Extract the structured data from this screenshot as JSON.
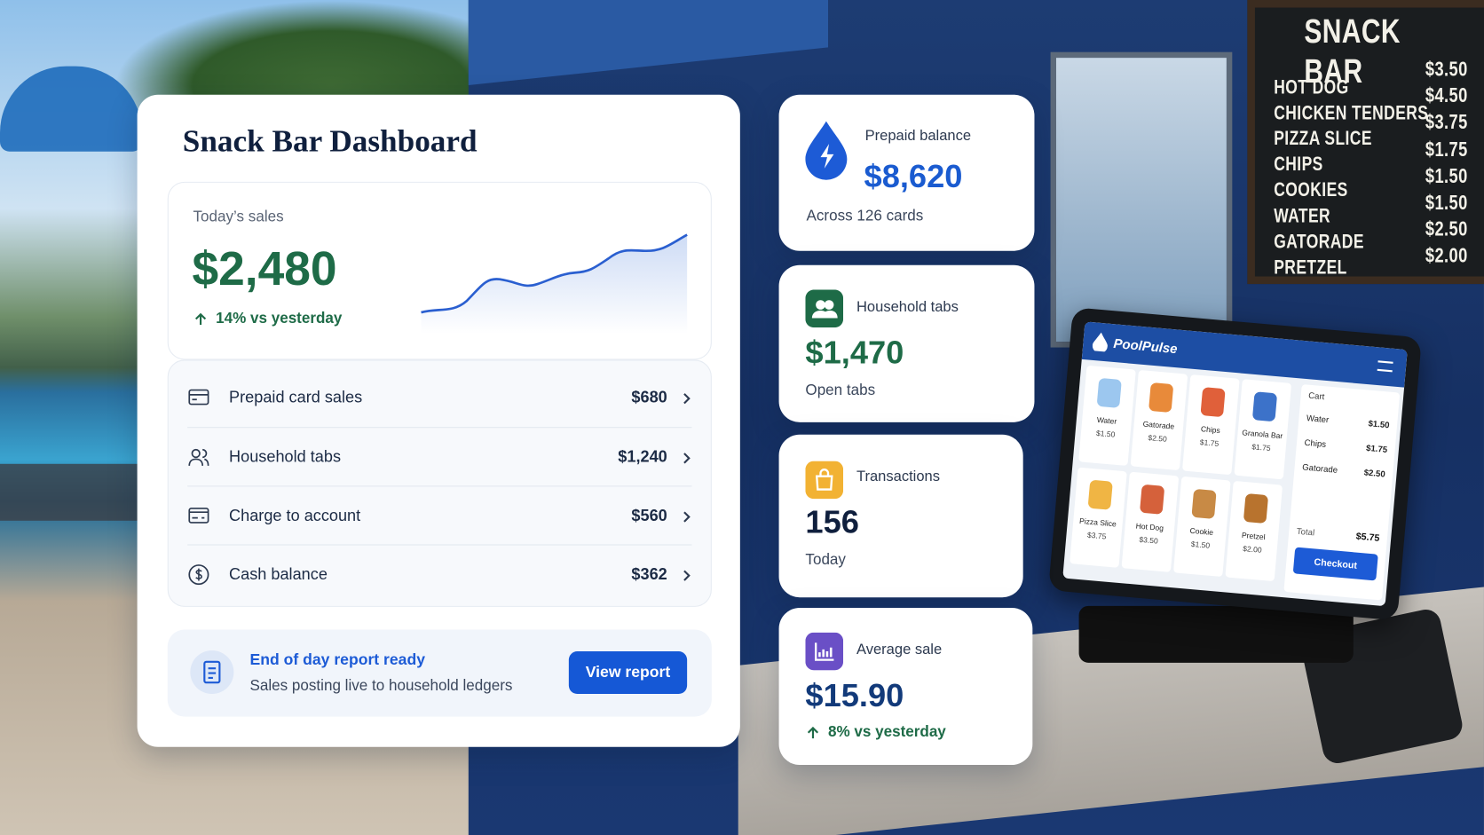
{
  "dashboard": {
    "title": "Snack Bar Dashboard",
    "sales": {
      "label": "Today’s sales",
      "value": "$2,480",
      "change": "14% vs yesterday"
    },
    "rows": [
      {
        "label": "Prepaid card sales",
        "value": "$680"
      },
      {
        "label": "Household tabs",
        "value": "$1,240"
      },
      {
        "label": "Charge to account",
        "value": "$560"
      },
      {
        "label": "Cash balance",
        "value": "$362"
      }
    ],
    "report": {
      "title": "End of day report ready",
      "subtitle": "Sales posting live to household ledgers",
      "button": "View report"
    }
  },
  "stats": [
    {
      "label": "Prepaid balance",
      "value": "$8,620",
      "note": "Across 126 cards"
    },
    {
      "label": "Household tabs",
      "value": "$1,470",
      "note": "Open tabs"
    },
    {
      "label": "Transactions",
      "value": "156",
      "note": "Today"
    },
    {
      "label": "Average sale",
      "value": "$15.90",
      "note": "8% vs yesterday"
    }
  ],
  "menu_board": {
    "title": "SNACK BAR",
    "items": [
      {
        "name": "HOT DOG",
        "price": "$3.50"
      },
      {
        "name": "CHICKEN TENDERS",
        "price": "$4.50"
      },
      {
        "name": "PIZZA SLICE",
        "price": "$3.75"
      },
      {
        "name": "CHIPS",
        "price": "$1.75"
      },
      {
        "name": "COOKIES",
        "price": "$1.50"
      },
      {
        "name": "WATER",
        "price": "$1.50"
      },
      {
        "name": "GATORADE",
        "price": "$2.50"
      },
      {
        "name": "PRETZEL",
        "price": "$2.00"
      }
    ]
  },
  "pos": {
    "brand": "PoolPulse",
    "products": [
      {
        "name": "Water",
        "price": "$1.50"
      },
      {
        "name": "Gatorade",
        "price": "$2.50"
      },
      {
        "name": "Chips",
        "price": "$1.75"
      },
      {
        "name": "Granola Bar",
        "price": "$1.75"
      },
      {
        "name": "Pizza Slice",
        "price": "$3.75"
      },
      {
        "name": "Hot Dog",
        "price": "$3.50"
      },
      {
        "name": "Cookie",
        "price": "$1.50"
      },
      {
        "name": "Pretzel",
        "price": "$2.00"
      }
    ],
    "cart": {
      "title": "Cart",
      "items": [
        {
          "name": "Water",
          "price": "$1.50"
        },
        {
          "name": "Chips",
          "price": "$1.75"
        },
        {
          "name": "Gatorade",
          "price": "$2.50"
        }
      ],
      "total_label": "Total",
      "total": "$5.75",
      "button": "Checkout"
    }
  }
}
